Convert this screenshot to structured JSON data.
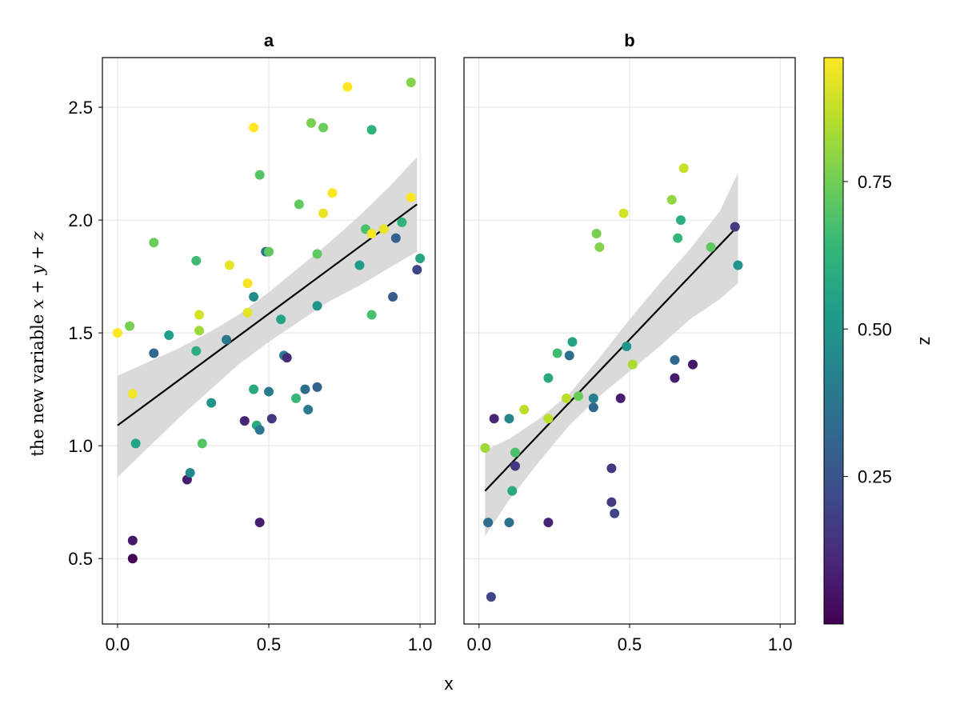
{
  "chart_data": {
    "type": "scatter",
    "ylabel_text": "the new variable",
    "ylabel_math": "x + y + z",
    "xlabel": "x",
    "x_ticks": [
      "0.0",
      "0.5",
      "1.0"
    ],
    "y_ticks": [
      "0.5",
      "1.0",
      "1.5",
      "2.0",
      "2.5"
    ],
    "xlim": [
      -0.05,
      1.05
    ],
    "ylim": [
      0.21,
      2.72
    ],
    "grid": true,
    "colorbar": {
      "label": "z",
      "colormap": "viridis",
      "range": [
        0.0,
        0.96
      ],
      "ticks": [
        "0.25",
        "0.50",
        "0.75"
      ],
      "tick_values": [
        0.25,
        0.5,
        0.75
      ]
    },
    "panels": [
      {
        "title": "a",
        "fit_line": {
          "x": [
            0.0,
            0.99
          ],
          "y": [
            1.09,
            2.07
          ]
        },
        "band_upper": [
          [
            0.0,
            1.31
          ],
          [
            0.1,
            1.37
          ],
          [
            0.2,
            1.43
          ],
          [
            0.3,
            1.5
          ],
          [
            0.4,
            1.58
          ],
          [
            0.5,
            1.68
          ],
          [
            0.6,
            1.79
          ],
          [
            0.7,
            1.9
          ],
          [
            0.8,
            2.02
          ],
          [
            0.9,
            2.15
          ],
          [
            0.99,
            2.28
          ]
        ],
        "band_lower": [
          [
            0.0,
            0.86
          ],
          [
            0.1,
            0.99
          ],
          [
            0.2,
            1.12
          ],
          [
            0.3,
            1.24
          ],
          [
            0.4,
            1.36
          ],
          [
            0.5,
            1.46
          ],
          [
            0.6,
            1.55
          ],
          [
            0.7,
            1.64
          ],
          [
            0.8,
            1.71
          ],
          [
            0.9,
            1.79
          ],
          [
            0.99,
            1.86
          ]
        ],
        "points": [
          {
            "x": 0.0,
            "y": 1.5,
            "z": 0.96
          },
          {
            "x": 0.04,
            "y": 1.53,
            "z": 0.76
          },
          {
            "x": 0.05,
            "y": 1.23,
            "z": 0.94
          },
          {
            "x": 0.06,
            "y": 1.01,
            "z": 0.56
          },
          {
            "x": 0.05,
            "y": 0.58,
            "z": 0.06
          },
          {
            "x": 0.05,
            "y": 0.5,
            "z": 0.01
          },
          {
            "x": 0.12,
            "y": 1.9,
            "z": 0.74
          },
          {
            "x": 0.12,
            "y": 1.41,
            "z": 0.32
          },
          {
            "x": 0.17,
            "y": 1.49,
            "z": 0.54
          },
          {
            "x": 0.23,
            "y": 0.85,
            "z": 0.08
          },
          {
            "x": 0.24,
            "y": 0.88,
            "z": 0.46
          },
          {
            "x": 0.26,
            "y": 1.82,
            "z": 0.66
          },
          {
            "x": 0.26,
            "y": 1.42,
            "z": 0.6
          },
          {
            "x": 0.27,
            "y": 1.51,
            "z": 0.82
          },
          {
            "x": 0.27,
            "y": 1.58,
            "z": 0.9
          },
          {
            "x": 0.28,
            "y": 1.01,
            "z": 0.7
          },
          {
            "x": 0.31,
            "y": 1.19,
            "z": 0.5
          },
          {
            "x": 0.36,
            "y": 1.47,
            "z": 0.38
          },
          {
            "x": 0.37,
            "y": 1.8,
            "z": 0.93
          },
          {
            "x": 0.42,
            "y": 1.11,
            "z": 0.1
          },
          {
            "x": 0.43,
            "y": 1.72,
            "z": 0.95
          },
          {
            "x": 0.43,
            "y": 1.59,
            "z": 0.92
          },
          {
            "x": 0.45,
            "y": 2.41,
            "z": 0.96
          },
          {
            "x": 0.45,
            "y": 1.66,
            "z": 0.46
          },
          {
            "x": 0.45,
            "y": 1.25,
            "z": 0.58
          },
          {
            "x": 0.47,
            "y": 2.2,
            "z": 0.7
          },
          {
            "x": 0.46,
            "y": 1.09,
            "z": 0.58
          },
          {
            "x": 0.47,
            "y": 1.07,
            "z": 0.38
          },
          {
            "x": 0.47,
            "y": 0.66,
            "z": 0.08
          },
          {
            "x": 0.49,
            "y": 1.86,
            "z": 0.36
          },
          {
            "x": 0.5,
            "y": 1.86,
            "z": 0.72
          },
          {
            "x": 0.5,
            "y": 1.24,
            "z": 0.4
          },
          {
            "x": 0.51,
            "y": 1.12,
            "z": 0.16
          },
          {
            "x": 0.54,
            "y": 1.56,
            "z": 0.56
          },
          {
            "x": 0.55,
            "y": 1.4,
            "z": 0.42
          },
          {
            "x": 0.56,
            "y": 1.39,
            "z": 0.12
          },
          {
            "x": 0.59,
            "y": 1.21,
            "z": 0.64
          },
          {
            "x": 0.6,
            "y": 2.07,
            "z": 0.72
          },
          {
            "x": 0.62,
            "y": 1.25,
            "z": 0.34
          },
          {
            "x": 0.63,
            "y": 1.16,
            "z": 0.4
          },
          {
            "x": 0.64,
            "y": 2.43,
            "z": 0.76
          },
          {
            "x": 0.66,
            "y": 1.26,
            "z": 0.3
          },
          {
            "x": 0.66,
            "y": 1.62,
            "z": 0.5
          },
          {
            "x": 0.66,
            "y": 1.85,
            "z": 0.72
          },
          {
            "x": 0.68,
            "y": 2.41,
            "z": 0.74
          },
          {
            "x": 0.68,
            "y": 2.03,
            "z": 0.93
          },
          {
            "x": 0.71,
            "y": 2.12,
            "z": 0.96
          },
          {
            "x": 0.76,
            "y": 2.59,
            "z": 0.96
          },
          {
            "x": 0.8,
            "y": 1.8,
            "z": 0.52
          },
          {
            "x": 0.82,
            "y": 1.96,
            "z": 0.68
          },
          {
            "x": 0.84,
            "y": 2.4,
            "z": 0.62
          },
          {
            "x": 0.84,
            "y": 1.58,
            "z": 0.68
          },
          {
            "x": 0.84,
            "y": 1.94,
            "z": 0.95
          },
          {
            "x": 0.88,
            "y": 1.96,
            "z": 0.93
          },
          {
            "x": 0.91,
            "y": 1.66,
            "z": 0.28
          },
          {
            "x": 0.92,
            "y": 1.92,
            "z": 0.3
          },
          {
            "x": 0.94,
            "y": 1.99,
            "z": 0.62
          },
          {
            "x": 0.97,
            "y": 2.1,
            "z": 0.96
          },
          {
            "x": 0.97,
            "y": 2.61,
            "z": 0.78
          },
          {
            "x": 0.99,
            "y": 1.78,
            "z": 0.2
          },
          {
            "x": 1.0,
            "y": 1.83,
            "z": 0.56
          }
        ]
      },
      {
        "title": "b",
        "fit_line": {
          "x": [
            0.02,
            0.85
          ],
          "y": [
            0.8,
            1.96
          ]
        },
        "band_upper": [
          [
            0.02,
            0.98
          ],
          [
            0.1,
            1.03
          ],
          [
            0.2,
            1.12
          ],
          [
            0.3,
            1.23
          ],
          [
            0.4,
            1.39
          ],
          [
            0.5,
            1.56
          ],
          [
            0.6,
            1.72
          ],
          [
            0.7,
            1.87
          ],
          [
            0.8,
            2.04
          ],
          [
            0.86,
            2.21
          ]
        ],
        "band_lower": [
          [
            0.02,
            0.6
          ],
          [
            0.1,
            0.76
          ],
          [
            0.2,
            0.93
          ],
          [
            0.3,
            1.09
          ],
          [
            0.4,
            1.22
          ],
          [
            0.5,
            1.33
          ],
          [
            0.6,
            1.44
          ],
          [
            0.7,
            1.56
          ],
          [
            0.8,
            1.65
          ],
          [
            0.86,
            1.72
          ]
        ],
        "points": [
          {
            "x": 0.02,
            "y": 0.99,
            "z": 0.82
          },
          {
            "x": 0.03,
            "y": 0.66,
            "z": 0.34
          },
          {
            "x": 0.04,
            "y": 0.33,
            "z": 0.2
          },
          {
            "x": 0.05,
            "y": 1.12,
            "z": 0.1
          },
          {
            "x": 0.1,
            "y": 1.12,
            "z": 0.44
          },
          {
            "x": 0.1,
            "y": 0.66,
            "z": 0.36
          },
          {
            "x": 0.11,
            "y": 0.8,
            "z": 0.58
          },
          {
            "x": 0.12,
            "y": 0.91,
            "z": 0.16
          },
          {
            "x": 0.12,
            "y": 0.97,
            "z": 0.68
          },
          {
            "x": 0.15,
            "y": 1.16,
            "z": 0.86
          },
          {
            "x": 0.23,
            "y": 0.66,
            "z": 0.1
          },
          {
            "x": 0.23,
            "y": 1.12,
            "z": 0.86
          },
          {
            "x": 0.23,
            "y": 1.3,
            "z": 0.58
          },
          {
            "x": 0.26,
            "y": 1.41,
            "z": 0.66
          },
          {
            "x": 0.29,
            "y": 1.21,
            "z": 0.86
          },
          {
            "x": 0.3,
            "y": 1.4,
            "z": 0.34
          },
          {
            "x": 0.31,
            "y": 1.46,
            "z": 0.56
          },
          {
            "x": 0.33,
            "y": 1.22,
            "z": 0.74
          },
          {
            "x": 0.38,
            "y": 1.21,
            "z": 0.42
          },
          {
            "x": 0.38,
            "y": 1.17,
            "z": 0.32
          },
          {
            "x": 0.39,
            "y": 1.94,
            "z": 0.76
          },
          {
            "x": 0.4,
            "y": 1.88,
            "z": 0.78
          },
          {
            "x": 0.44,
            "y": 0.9,
            "z": 0.16
          },
          {
            "x": 0.44,
            "y": 0.75,
            "z": 0.16
          },
          {
            "x": 0.45,
            "y": 0.7,
            "z": 0.2
          },
          {
            "x": 0.47,
            "y": 1.21,
            "z": 0.08
          },
          {
            "x": 0.48,
            "y": 2.03,
            "z": 0.9
          },
          {
            "x": 0.49,
            "y": 1.44,
            "z": 0.5
          },
          {
            "x": 0.51,
            "y": 1.36,
            "z": 0.84
          },
          {
            "x": 0.64,
            "y": 2.09,
            "z": 0.8
          },
          {
            "x": 0.65,
            "y": 1.3,
            "z": 0.08
          },
          {
            "x": 0.65,
            "y": 1.38,
            "z": 0.32
          },
          {
            "x": 0.66,
            "y": 1.92,
            "z": 0.64
          },
          {
            "x": 0.67,
            "y": 2.0,
            "z": 0.6
          },
          {
            "x": 0.68,
            "y": 2.23,
            "z": 0.88
          },
          {
            "x": 0.71,
            "y": 1.36,
            "z": 0.06
          },
          {
            "x": 0.77,
            "y": 1.88,
            "z": 0.72
          },
          {
            "x": 0.85,
            "y": 1.97,
            "z": 0.16
          },
          {
            "x": 0.86,
            "y": 1.8,
            "z": 0.5
          }
        ]
      }
    ]
  }
}
